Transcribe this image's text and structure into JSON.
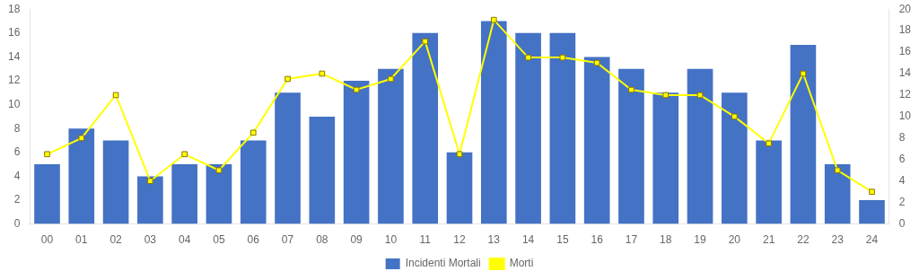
{
  "chart_data": {
    "type": "bar",
    "categories": [
      "00",
      "01",
      "02",
      "03",
      "04",
      "05",
      "06",
      "07",
      "08",
      "09",
      "10",
      "11",
      "12",
      "13",
      "14",
      "15",
      "16",
      "17",
      "18",
      "19",
      "20",
      "21",
      "22",
      "23",
      "24"
    ],
    "series": [
      {
        "name": "Incidenti Mortali",
        "type": "bar",
        "color": "#4472C4",
        "values": [
          5,
          8,
          7,
          4,
          5,
          5,
          7,
          11,
          9,
          12,
          13,
          16,
          6,
          17,
          16,
          16,
          14,
          13,
          11,
          13,
          11,
          7,
          15,
          5,
          2
        ]
      },
      {
        "name": "Morti",
        "type": "line",
        "axis": "y2",
        "color": "#FFFF00",
        "marker": "square",
        "values": [
          6.5,
          8,
          12,
          4,
          6.5,
          5,
          8.5,
          13.5,
          14,
          12.5,
          13.5,
          17,
          6.5,
          19,
          15.5,
          15.5,
          15.0,
          12.5,
          12,
          12,
          10,
          7.5,
          14,
          5,
          3
        ]
      }
    ],
    "ylim": [
      0,
      18
    ],
    "yticks": [
      0,
      2,
      4,
      6,
      8,
      10,
      12,
      14,
      16,
      18
    ],
    "y2lim": [
      0,
      20
    ],
    "y2ticks": [
      0,
      2,
      4,
      6,
      8,
      10,
      12,
      14,
      16,
      18,
      20
    ],
    "grid": false,
    "legend": "bottom"
  }
}
